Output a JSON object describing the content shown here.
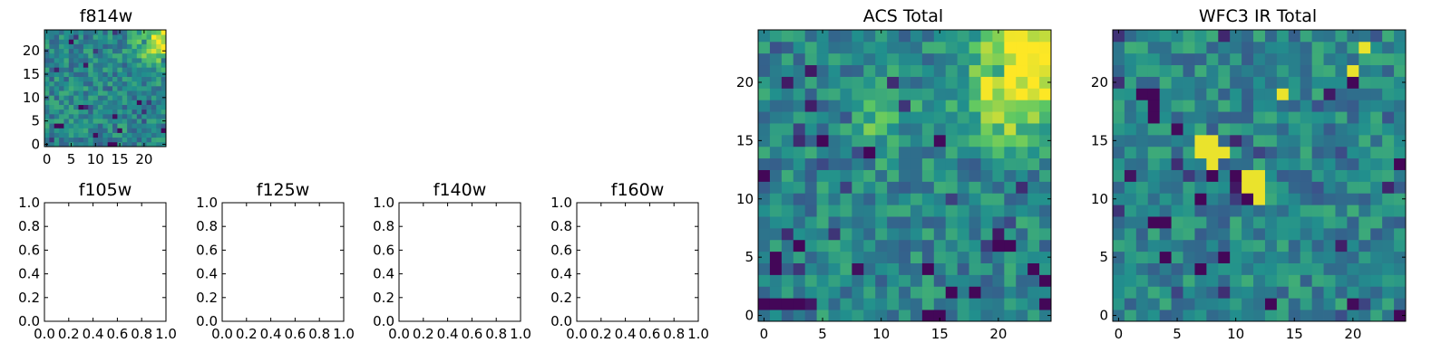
{
  "figure": {
    "background": "#ffffff",
    "colormap": [
      "#440154",
      "#3b528b",
      "#21908d",
      "#5dc863",
      "#fde725"
    ]
  },
  "chart_data": [
    {
      "type": "heatmap",
      "id": "f814w",
      "title": "f814w",
      "grid_size": 25,
      "xlim": [
        -0.5,
        24.5
      ],
      "ylim": [
        -0.5,
        24.5
      ],
      "xticks": [
        0,
        5,
        10,
        15,
        20
      ],
      "yticks": [
        0,
        5,
        10,
        15,
        20
      ],
      "seed": 11,
      "hotspots": [
        [
          23,
          22,
          3.0,
          0.55
        ]
      ],
      "lows": [
        [
          14,
          0
        ],
        [
          13,
          0
        ],
        [
          24,
          3
        ],
        [
          7,
          8
        ],
        [
          2,
          4
        ]
      ]
    },
    {
      "type": "heatmap",
      "id": "acs-total",
      "title": "ACS Total",
      "grid_size": 25,
      "xlim": [
        -0.5,
        24.5
      ],
      "ylim": [
        -0.5,
        24.5
      ],
      "xticks": [
        0,
        5,
        10,
        15,
        20
      ],
      "yticks": [
        0,
        5,
        10,
        15,
        20
      ],
      "seed": 7,
      "hotspots": [
        [
          23,
          23,
          3.2,
          0.6
        ],
        [
          21,
          18,
          2.5,
          0.35
        ],
        [
          10,
          17,
          2.0,
          0.25
        ]
      ],
      "lows": [
        [
          0,
          1
        ],
        [
          1,
          1
        ],
        [
          2,
          1
        ],
        [
          3,
          1
        ],
        [
          1,
          4
        ],
        [
          1,
          5
        ],
        [
          3,
          6
        ],
        [
          0,
          12
        ],
        [
          5,
          15
        ],
        [
          9,
          14
        ],
        [
          14,
          4
        ],
        [
          15,
          0
        ],
        [
          14,
          0
        ],
        [
          23,
          4
        ],
        [
          24,
          1
        ],
        [
          24,
          3
        ],
        [
          20,
          6
        ],
        [
          21,
          6
        ],
        [
          16,
          2
        ]
      ]
    },
    {
      "type": "heatmap",
      "id": "wfc3-ir-total",
      "title": "WFC3 IR Total",
      "grid_size": 25,
      "xlim": [
        -0.5,
        24.5
      ],
      "ylim": [
        -0.5,
        24.5
      ],
      "xticks": [
        0,
        5,
        10,
        15,
        20
      ],
      "yticks": [
        0,
        5,
        10,
        15,
        20
      ],
      "seed": 3,
      "highs": [
        [
          7,
          14
        ],
        [
          8,
          14
        ],
        [
          9,
          14
        ],
        [
          7,
          15
        ],
        [
          8,
          15
        ],
        [
          8,
          13
        ],
        [
          11,
          11
        ],
        [
          12,
          11
        ],
        [
          11,
          12
        ],
        [
          12,
          12
        ],
        [
          12,
          10
        ],
        [
          14,
          19
        ],
        [
          21,
          23
        ],
        [
          20,
          21
        ]
      ],
      "lows": [
        [
          2,
          19
        ],
        [
          3,
          19
        ],
        [
          3,
          18
        ],
        [
          3,
          17
        ],
        [
          10,
          12
        ],
        [
          8,
          12
        ],
        [
          11,
          10
        ],
        [
          3,
          8
        ],
        [
          4,
          5
        ],
        [
          7,
          4
        ],
        [
          9,
          5
        ],
        [
          13,
          1
        ],
        [
          24,
          0
        ],
        [
          20,
          20
        ]
      ]
    },
    {
      "type": "scatter",
      "id": "f105w",
      "title": "f105w",
      "xlim": [
        0.0,
        1.0
      ],
      "ylim": [
        0.0,
        1.0
      ],
      "xticks": [
        "0.0",
        "0.2",
        "0.4",
        "0.6",
        "0.8",
        "1.0"
      ],
      "yticks": [
        "0.0",
        "0.2",
        "0.4",
        "0.6",
        "0.8",
        "1.0"
      ],
      "values": []
    },
    {
      "type": "scatter",
      "id": "f125w",
      "title": "f125w",
      "xlim": [
        0.0,
        1.0
      ],
      "ylim": [
        0.0,
        1.0
      ],
      "xticks": [
        "0.0",
        "0.2",
        "0.4",
        "0.6",
        "0.8",
        "1.0"
      ],
      "yticks": [
        "0.0",
        "0.2",
        "0.4",
        "0.6",
        "0.8",
        "1.0"
      ],
      "values": []
    },
    {
      "type": "scatter",
      "id": "f140w",
      "title": "f140w",
      "xlim": [
        0.0,
        1.0
      ],
      "ylim": [
        0.0,
        1.0
      ],
      "xticks": [
        "0.0",
        "0.2",
        "0.4",
        "0.6",
        "0.8",
        "1.0"
      ],
      "yticks": [
        "0.0",
        "0.2",
        "0.4",
        "0.6",
        "0.8",
        "1.0"
      ],
      "values": []
    },
    {
      "type": "scatter",
      "id": "f160w",
      "title": "f160w",
      "xlim": [
        0.0,
        1.0
      ],
      "ylim": [
        0.0,
        1.0
      ],
      "xticks": [
        "0.0",
        "0.2",
        "0.4",
        "0.6",
        "0.8",
        "1.0"
      ],
      "yticks": [
        "0.0",
        "0.2",
        "0.4",
        "0.6",
        "0.8",
        "1.0"
      ],
      "values": []
    }
  ]
}
